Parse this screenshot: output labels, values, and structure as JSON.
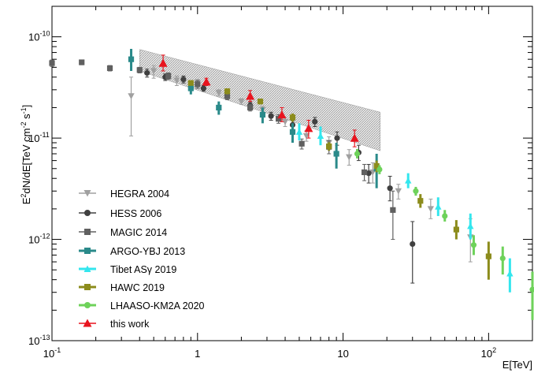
{
  "chart_data": {
    "type": "scatter",
    "xscale": "log",
    "yscale": "log",
    "xlim": [
      0.1,
      200
    ],
    "ylim": [
      1e-13,
      2e-10
    ],
    "xlabel": "E[TeV]",
    "ylabel_parts": {
      "a": "E",
      "b": "2",
      "c": "dN/dE[TeV cm",
      "d": "-2",
      "e": " s",
      "f": "-1",
      "g": "]"
    },
    "x_tick_labels": [
      {
        "value": 0.1,
        "base": "10",
        "exp": "-1"
      },
      {
        "value": 1,
        "text": "1"
      },
      {
        "value": 10,
        "text": "10"
      },
      {
        "value": 100,
        "base": "10",
        "exp": "2"
      }
    ],
    "y_tick_labels": [
      {
        "value": 1e-13,
        "base": "10",
        "exp": "-13"
      },
      {
        "value": 1e-12,
        "base": "10",
        "exp": "-12"
      },
      {
        "value": 1e-11,
        "base": "10",
        "exp": "-11"
      },
      {
        "value": 1e-10,
        "base": "10",
        "exp": "-10"
      }
    ],
    "legend_position": "bottom-left",
    "band": {
      "upper": [
        [
          0.4,
          7.5e-11
        ],
        [
          18,
          1.8e-11
        ]
      ],
      "lower": [
        [
          0.4,
          4.6e-11
        ],
        [
          18,
          7.5e-12
        ]
      ]
    },
    "series": [
      {
        "name": "HEGRA 2004",
        "color": "#a0a0a0",
        "marker": "triangle-down",
        "points": [
          [
            0.35,
            2.6e-11,
            1.05e-11,
            4e-11
          ],
          [
            0.5,
            4.6e-11,
            3.9e-11,
            5.2e-11
          ],
          [
            0.72,
            3.7e-11,
            3.3e-11,
            4.1e-11
          ],
          [
            1.0,
            3.5e-11,
            3.2e-11,
            3.8e-11
          ],
          [
            1.4,
            2.8e-11,
            2.6e-11,
            3e-11
          ],
          [
            2.0,
            2.3e-11,
            2.15e-11,
            2.45e-11
          ],
          [
            2.8,
            1.9e-11,
            1.75e-11,
            2.05e-11
          ],
          [
            4.0,
            1.45e-11,
            1.3e-11,
            1.6e-11
          ],
          [
            5.6,
            1.05e-11,
            9.3e-12,
            1.18e-11
          ],
          [
            8.0,
            9e-12,
            7.8e-12,
            1.03e-11
          ],
          [
            11.0,
            6.5e-12,
            5.4e-12,
            7.7e-12
          ],
          [
            16.0,
            4.6e-12,
            3.6e-12,
            5.7e-12
          ],
          [
            24.0,
            3e-12,
            2.5e-12,
            3.5e-12
          ],
          [
            40.0,
            2e-12,
            1.6e-12,
            2.5e-12
          ],
          [
            75.0,
            1.05e-12,
            6e-13,
            1.6e-12
          ]
        ]
      },
      {
        "name": "HESS 2006",
        "color": "#404040",
        "marker": "circle",
        "points": [
          [
            0.45,
            4.4e-11,
            4e-11,
            4.8e-11
          ],
          [
            0.6,
            4e-11,
            3.7e-11,
            4.3e-11
          ],
          [
            0.8,
            3.8e-11,
            3.5e-11,
            4.1e-11
          ],
          [
            1.1,
            3.1e-11,
            2.9e-11,
            3.3e-11
          ],
          [
            1.6,
            2.6e-11,
            2.4e-11,
            2.8e-11
          ],
          [
            2.3,
            2.1e-11,
            1.95e-11,
            2.25e-11
          ],
          [
            3.2,
            1.65e-11,
            1.5e-11,
            1.8e-11
          ],
          [
            4.5,
            1.35e-11,
            1.2e-11,
            1.5e-11
          ],
          [
            6.4,
            1.45e-11,
            1.3e-11,
            1.6e-11
          ],
          [
            9.1,
            1e-11,
            8.5e-12,
            1.15e-11
          ],
          [
            12.8,
            7.2e-12,
            6e-12,
            8.5e-12
          ],
          [
            15.0,
            4.5e-12,
            3.6e-12,
            5.5e-12
          ],
          [
            21.0,
            3.2e-12,
            2.4e-12,
            4.2e-12
          ],
          [
            30.0,
            9e-13,
            3.7e-13,
            1.5e-12
          ]
        ]
      },
      {
        "name": "MAGIC 2014",
        "color": "#606060",
        "marker": "square",
        "points": [
          [
            0.1,
            5.5e-11,
            5.1e-11,
            5.9e-11
          ],
          [
            0.16,
            5.6e-11,
            5.3e-11,
            5.9e-11
          ],
          [
            0.25,
            4.9e-11,
            4.6e-11,
            5.2e-11
          ],
          [
            0.4,
            4.7e-11,
            4.4e-11,
            5e-11
          ],
          [
            0.63,
            4.1e-11,
            3.8e-11,
            4.4e-11
          ],
          [
            1.0,
            3.4e-11,
            3.1e-11,
            3.7e-11
          ],
          [
            1.6,
            2.6e-11,
            2.4e-11,
            2.8e-11
          ],
          [
            2.3,
            2e-11,
            1.85e-11,
            2.15e-11
          ],
          [
            3.6,
            1.55e-11,
            1.4e-11,
            1.7e-11
          ],
          [
            5.2,
            8.8e-12,
            7.8e-12,
            9.8e-12
          ],
          [
            8.0,
            8.2e-12,
            7e-12,
            9.4e-12
          ],
          [
            14.0,
            4.6e-12,
            3.8e-12,
            5.5e-12
          ],
          [
            22.0,
            1.95e-12,
            1e-12,
            3e-12
          ]
        ]
      },
      {
        "name": "ARGO-YBJ 2013",
        "color": "#2a8a8a",
        "marker": "square",
        "points": [
          [
            0.35,
            6e-11,
            4.6e-11,
            7.6e-11
          ],
          [
            0.9,
            3.1e-11,
            2.7e-11,
            3.5e-11
          ],
          [
            1.4,
            2e-11,
            1.7e-11,
            2.3e-11
          ],
          [
            2.8,
            1.7e-11,
            1.4e-11,
            2e-11
          ],
          [
            4.5,
            1.15e-11,
            9e-12,
            1.4e-11
          ],
          [
            9.0,
            7e-12,
            5e-12,
            9e-12
          ],
          [
            17.0,
            5e-12,
            3.2e-12,
            7e-12
          ]
        ]
      },
      {
        "name": "Tibet ASγ 2019",
        "color": "#33e6ee",
        "marker": "triangle-up",
        "points": [
          [
            5.0,
            1.15e-11,
            9.5e-12,
            1.4e-11
          ],
          [
            7.0,
            1.05e-11,
            8.5e-12,
            1.3e-11
          ],
          [
            28.0,
            3.8e-12,
            3.2e-12,
            4.5e-12
          ],
          [
            45.0,
            2.1e-12,
            1.7e-12,
            2.6e-12
          ],
          [
            75.0,
            1.35e-12,
            1e-12,
            1.8e-12
          ],
          [
            140.0,
            4.6e-13,
            3e-13,
            6.5e-13
          ]
        ]
      },
      {
        "name": "HAWC 2019",
        "color": "#8c8c1c",
        "marker": "square",
        "points": [
          [
            0.9,
            3.5e-11,
            3.3e-11,
            3.7e-11
          ],
          [
            1.6,
            2.9e-11,
            2.7e-11,
            3.1e-11
          ],
          [
            2.7,
            2.3e-11,
            2.15e-11,
            2.45e-11
          ],
          [
            4.5,
            1.6e-11,
            1.45e-11,
            1.75e-11
          ],
          [
            8.0,
            8.3e-12,
            7.5e-12,
            9.1e-12
          ],
          [
            17.0,
            5.3e-12,
            4.6e-12,
            6e-12
          ],
          [
            34.0,
            2.4e-12,
            2.05e-12,
            2.8e-12
          ],
          [
            60.0,
            1.25e-12,
            1e-12,
            1.55e-12
          ],
          [
            100.0,
            6.8e-13,
            4e-13,
            9.5e-13
          ]
        ]
      },
      {
        "name": "LHAASO-KM2A 2020",
        "color": "#6ed25a",
        "marker": "circle",
        "points": [
          [
            12.5,
            7e-12,
            6.3e-12,
            7.8e-12
          ],
          [
            17.8,
            4.9e-12,
            4.4e-12,
            5.4e-12
          ],
          [
            31.6,
            3e-12,
            2.7e-12,
            3.3e-12
          ],
          [
            50.0,
            1.7e-12,
            1.5e-12,
            1.95e-12
          ],
          [
            79.0,
            8.8e-13,
            7e-13,
            1.1e-12
          ],
          [
            125.0,
            6.5e-13,
            4.5e-13,
            8.5e-13
          ],
          [
            200.0,
            3.2e-13,
            1.6e-13,
            4.8e-13
          ]
        ]
      },
      {
        "name": "this work",
        "color": "#e8141e",
        "marker": "triangle-up",
        "points": [
          [
            0.58,
            5.5e-11,
            4.6e-11,
            6.6e-11
          ],
          [
            1.15,
            3.6e-11,
            3.3e-11,
            3.9e-11
          ],
          [
            2.3,
            2.6e-11,
            2.3e-11,
            2.95e-11
          ],
          [
            3.8,
            1.7e-11,
            1.45e-11,
            2e-11
          ],
          [
            5.8,
            1.25e-11,
            1e-11,
            1.5e-11
          ],
          [
            12.0,
            1e-11,
            8.2e-12,
            1.2e-11
          ]
        ]
      }
    ]
  }
}
